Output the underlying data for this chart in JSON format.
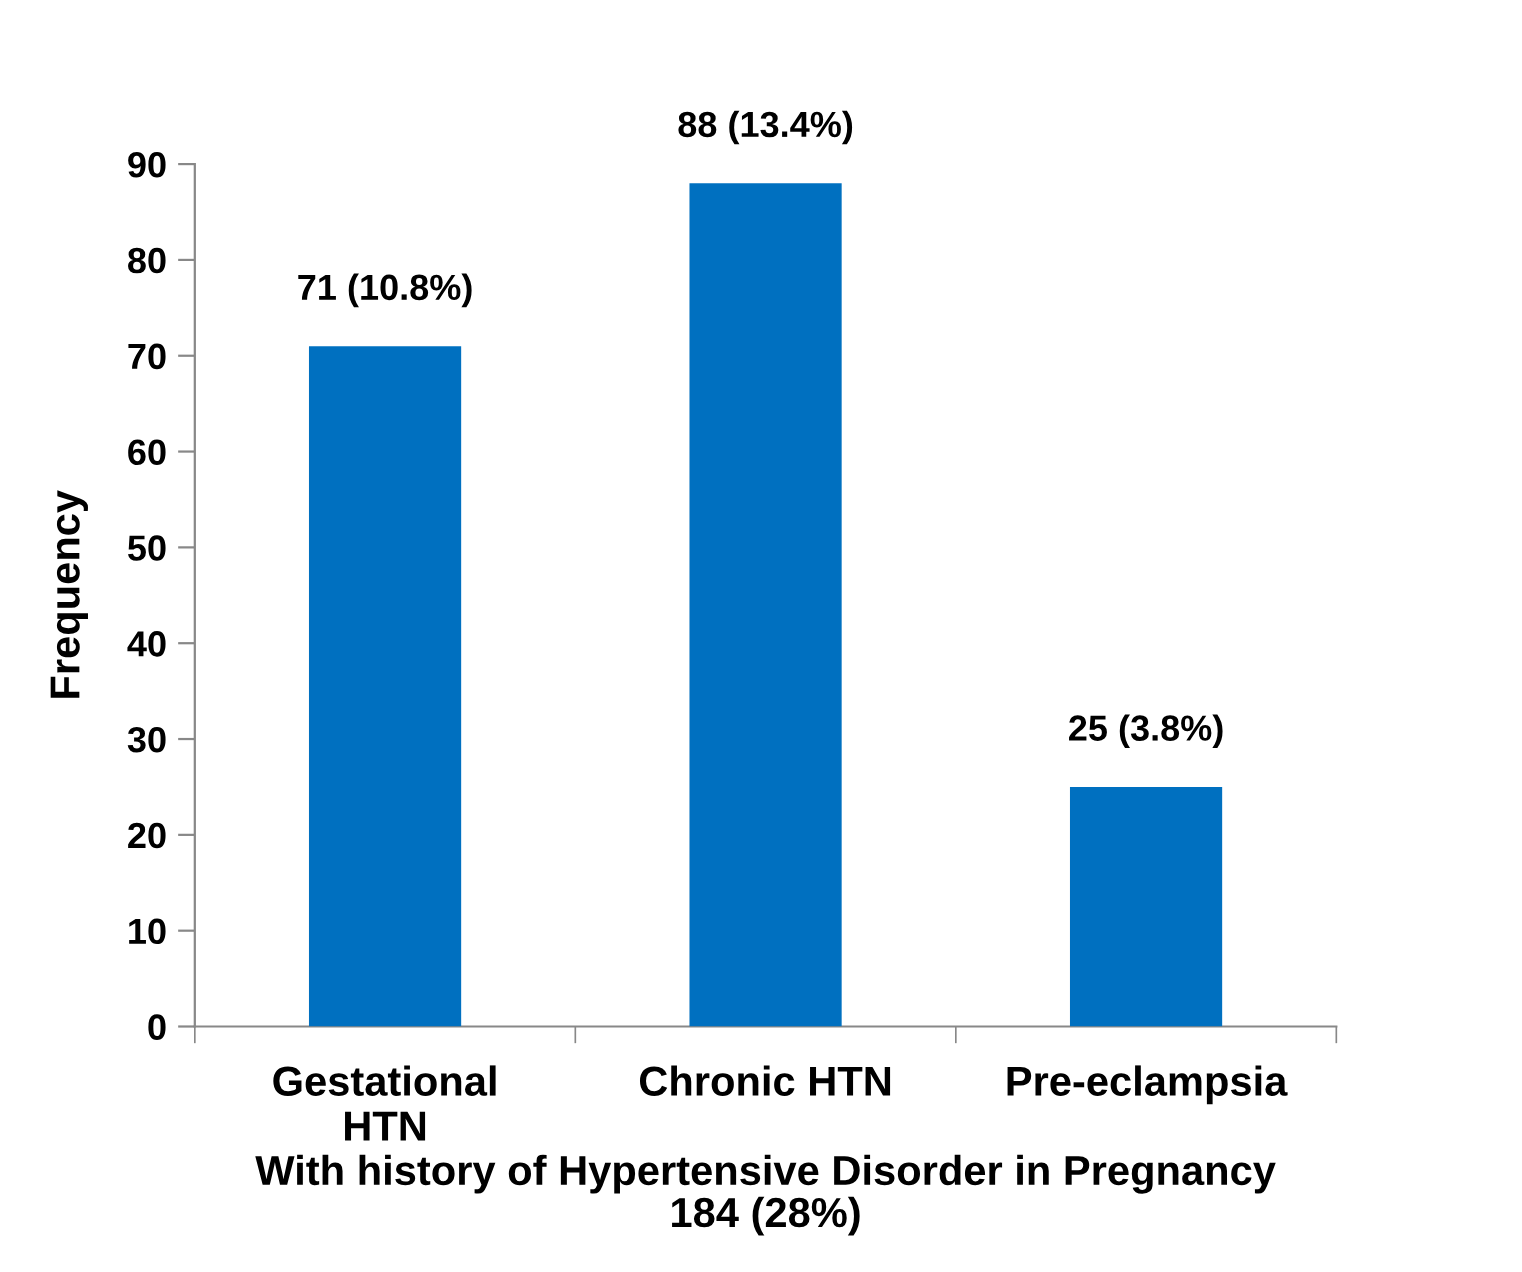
{
  "chart_data": {
    "type": "bar",
    "categories": [
      "Gestational\nHTN",
      "Chronic HTN",
      "Pre-eclampsia"
    ],
    "values": [
      71,
      88,
      25
    ],
    "color": "#0070c0",
    "value_labels": [
      "71 (10.8%)",
      "88 (13.4%)",
      "25 (3.8%)"
    ],
    "xlabel": "With history of Hypertensive Disorder in Pregnancy\n184 (28%)",
    "ylabel": "Frequency",
    "ylim": [
      0,
      90
    ],
    "yticks": [
      0,
      10,
      20,
      30,
      40,
      50,
      60,
      70,
      80,
      90
    ],
    "grid": false,
    "legend": false
  }
}
